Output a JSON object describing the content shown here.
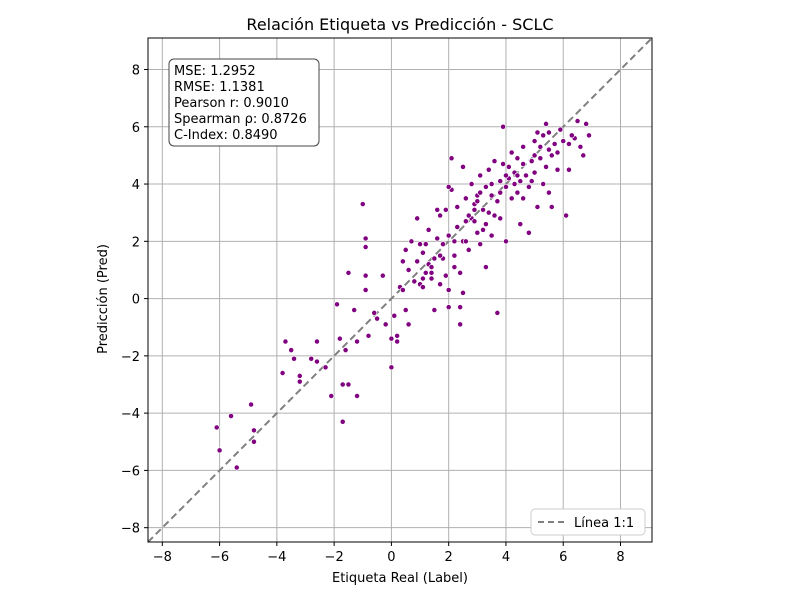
{
  "chart_data": {
    "type": "scatter",
    "title": "Relación Etiqueta vs Predicción - SCLC",
    "xlabel": "Etiqueta Real (Label)",
    "ylabel": "Predicción (Pred)",
    "xlim": [
      -8.5,
      9.1
    ],
    "ylim": [
      -8.5,
      9.1
    ],
    "xticks": [
      -8,
      -6,
      -4,
      -2,
      0,
      2,
      4,
      6,
      8
    ],
    "yticks": [
      -8,
      -6,
      -4,
      -2,
      0,
      2,
      4,
      6,
      8
    ],
    "xtick_labels": [
      "−8",
      "−6",
      "−4",
      "−2",
      "0",
      "2",
      "4",
      "6",
      "8"
    ],
    "ytick_labels": [
      "−8",
      "−6",
      "−4",
      "−2",
      "0",
      "2",
      "4",
      "6",
      "8"
    ],
    "grid": true,
    "point_color": "#800080",
    "reference_line": {
      "name": "Línea 1:1",
      "color": "#808080",
      "style": "dashed",
      "from": [
        -8.5,
        -8.5
      ],
      "to": [
        9.1,
        9.1
      ]
    },
    "legend": {
      "position": "bottom-right",
      "entries": [
        "Línea 1:1"
      ]
    },
    "stats_box": {
      "position": "top-left",
      "lines": [
        "MSE: 1.2952",
        "RMSE: 1.1381",
        "Pearson r: 0.9010",
        "Spearman ρ: 0.8726",
        "C-Index: 0.8490"
      ]
    },
    "series": [
      {
        "points": [
          [
            -6.1,
            -4.5
          ],
          [
            -6.0,
            -5.3
          ],
          [
            -5.6,
            -4.1
          ],
          [
            -5.4,
            -5.9
          ],
          [
            -4.9,
            -3.7
          ],
          [
            -4.8,
            -4.6
          ],
          [
            -4.8,
            -5.0
          ],
          [
            -3.8,
            -2.6
          ],
          [
            -3.7,
            -1.5
          ],
          [
            -3.5,
            -1.8
          ],
          [
            -3.4,
            -2.1
          ],
          [
            -3.2,
            -2.9
          ],
          [
            -3.2,
            -2.7
          ],
          [
            -2.8,
            -2.1
          ],
          [
            -2.6,
            -2.2
          ],
          [
            -2.6,
            -1.5
          ],
          [
            -2.3,
            -2.4
          ],
          [
            -2.1,
            -3.4
          ],
          [
            -1.9,
            -0.2
          ],
          [
            -1.8,
            -1.4
          ],
          [
            -1.7,
            -3.0
          ],
          [
            -1.7,
            -4.3
          ],
          [
            -1.6,
            -1.8
          ],
          [
            -1.5,
            -3.0
          ],
          [
            -1.5,
            0.9
          ],
          [
            -1.3,
            -0.4
          ],
          [
            -1.2,
            -1.5
          ],
          [
            -1.2,
            -3.4
          ],
          [
            -1.0,
            3.3
          ],
          [
            -0.9,
            2.1
          ],
          [
            -0.9,
            1.8
          ],
          [
            -0.9,
            0.8
          ],
          [
            -0.9,
            0.3
          ],
          [
            -0.8,
            -1.3
          ],
          [
            -0.6,
            -0.5
          ],
          [
            -0.5,
            -0.7
          ],
          [
            -0.3,
            0.8
          ],
          [
            -0.2,
            -0.9
          ],
          [
            0.0,
            -2.4
          ],
          [
            0.0,
            -1.4
          ],
          [
            0.1,
            -0.6
          ],
          [
            0.2,
            -1.5
          ],
          [
            0.2,
            -1.3
          ],
          [
            0.3,
            0.4
          ],
          [
            0.4,
            1.3
          ],
          [
            0.4,
            0.3
          ],
          [
            0.5,
            1.7
          ],
          [
            0.5,
            -0.4
          ],
          [
            0.6,
            1.0
          ],
          [
            0.6,
            -0.9
          ],
          [
            0.7,
            2.0
          ],
          [
            0.8,
            0.6
          ],
          [
            0.9,
            2.8
          ],
          [
            1.0,
            1.9
          ],
          [
            1.0,
            0.5
          ],
          [
            1.1,
            1.6
          ],
          [
            1.1,
            0.7
          ],
          [
            1.2,
            0.9
          ],
          [
            1.2,
            1.9
          ],
          [
            1.3,
            1.2
          ],
          [
            1.3,
            2.4
          ],
          [
            1.4,
            1.1
          ],
          [
            1.4,
            0.7
          ],
          [
            1.5,
            -0.4
          ],
          [
            1.5,
            1.4
          ],
          [
            1.6,
            2.1
          ],
          [
            1.6,
            3.1
          ],
          [
            1.7,
            2.9
          ],
          [
            1.7,
            0.5
          ],
          [
            1.8,
            1.9
          ],
          [
            1.8,
            1.4
          ],
          [
            1.9,
            0.8
          ],
          [
            1.9,
            3.1
          ],
          [
            2.0,
            -0.3
          ],
          [
            2.0,
            2.2
          ],
          [
            2.0,
            0.3
          ],
          [
            2.1,
            4.9
          ],
          [
            2.1,
            3.8
          ],
          [
            2.2,
            1.5
          ],
          [
            2.2,
            1.1
          ],
          [
            2.3,
            3.2
          ],
          [
            2.3,
            2.5
          ],
          [
            2.4,
            0.9
          ],
          [
            2.4,
            -0.3
          ],
          [
            2.4,
            -0.9
          ],
          [
            2.5,
            2.0
          ],
          [
            2.5,
            4.6
          ],
          [
            2.5,
            0.2
          ],
          [
            2.6,
            2.7
          ],
          [
            2.6,
            3.5
          ],
          [
            2.7,
            1.7
          ],
          [
            2.8,
            2.8
          ],
          [
            2.8,
            4.0
          ],
          [
            2.9,
            3.3
          ],
          [
            2.9,
            2.7
          ],
          [
            3.0,
            2.3
          ],
          [
            3.0,
            3.6
          ],
          [
            3.1,
            1.9
          ],
          [
            3.1,
            4.3
          ],
          [
            3.2,
            3.1
          ],
          [
            3.2,
            2.4
          ],
          [
            3.3,
            3.9
          ],
          [
            3.3,
            1.1
          ],
          [
            3.4,
            3.0
          ],
          [
            3.4,
            4.5
          ],
          [
            3.5,
            3.6
          ],
          [
            3.5,
            2.2
          ],
          [
            3.6,
            4.8
          ],
          [
            3.6,
            2.9
          ],
          [
            3.7,
            3.4
          ],
          [
            3.7,
            -0.5
          ],
          [
            3.8,
            4.1
          ],
          [
            3.8,
            3.7
          ],
          [
            3.9,
            4.7
          ],
          [
            3.9,
            6.0
          ],
          [
            4.0,
            3.9
          ],
          [
            4.0,
            2.0
          ],
          [
            4.1,
            4.6
          ],
          [
            4.1,
            4.2
          ],
          [
            4.2,
            3.5
          ],
          [
            4.2,
            5.1
          ],
          [
            4.3,
            4.4
          ],
          [
            4.4,
            3.7
          ],
          [
            4.4,
            4.9
          ],
          [
            4.5,
            4.1
          ],
          [
            4.5,
            2.6
          ],
          [
            4.6,
            5.3
          ],
          [
            4.6,
            4.7
          ],
          [
            4.7,
            4.3
          ],
          [
            4.8,
            3.9
          ],
          [
            4.8,
            2.3
          ],
          [
            4.9,
            4.8
          ],
          [
            5.0,
            5.5
          ],
          [
            5.0,
            4.4
          ],
          [
            5.1,
            5.8
          ],
          [
            5.1,
            3.2
          ],
          [
            5.2,
            4.9
          ],
          [
            5.2,
            5.3
          ],
          [
            5.3,
            4.0
          ],
          [
            5.3,
            5.7
          ],
          [
            5.4,
            6.1
          ],
          [
            5.4,
            4.6
          ],
          [
            5.5,
            5.2
          ],
          [
            5.5,
            3.7
          ],
          [
            5.6,
            5.0
          ],
          [
            5.6,
            3.2
          ],
          [
            5.7,
            5.4
          ],
          [
            5.8,
            4.5
          ],
          [
            6.0,
            5.5
          ],
          [
            6.1,
            2.9
          ],
          [
            6.2,
            5.4
          ],
          [
            6.2,
            4.5
          ],
          [
            6.4,
            5.6
          ],
          [
            6.5,
            6.2
          ],
          [
            6.6,
            5.3
          ],
          [
            6.7,
            5.0
          ],
          [
            6.8,
            6.1
          ],
          [
            6.9,
            5.7
          ],
          [
            2.0,
            3.9
          ],
          [
            1.7,
            1.5
          ],
          [
            3.0,
            3.4
          ],
          [
            4.9,
            4.1
          ],
          [
            5.8,
            5.1
          ],
          [
            4.3,
            4.0
          ],
          [
            0.9,
            1.3
          ],
          [
            3.3,
            2.6
          ],
          [
            2.7,
            2.9
          ],
          [
            4.6,
            3.5
          ],
          [
            5.9,
            5.9
          ],
          [
            1.1,
            0.4
          ],
          [
            3.5,
            4.0
          ],
          [
            4.0,
            4.3
          ],
          [
            2.2,
            2.0
          ],
          [
            6.3,
            5.7
          ],
          [
            5.0,
            5.0
          ],
          [
            3.8,
            2.8
          ],
          [
            2.6,
            2.0
          ],
          [
            1.4,
            0.9
          ],
          [
            4.4,
            4.3
          ],
          [
            5.5,
            5.8
          ],
          [
            3.1,
            3.7
          ],
          [
            2.9,
            3.1
          ]
        ]
      }
    ]
  }
}
